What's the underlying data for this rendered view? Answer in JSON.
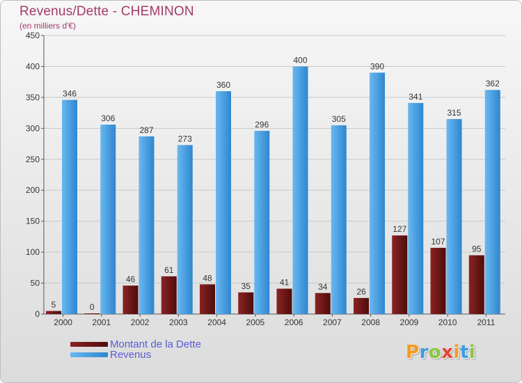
{
  "title": "Revenus/Dette - CHEMINON",
  "subtitle": "(en milliers d'€)",
  "brand": {
    "letters": [
      "P",
      "r",
      "o",
      "x",
      "i",
      "t",
      "i"
    ],
    "colors": [
      "#f39a1f",
      "#3a9de0",
      "#8cc63f",
      "#e8452c",
      "#f39a1f",
      "#3a9de0",
      "#8cc63f"
    ]
  },
  "colors": {
    "dette": "#6e1414",
    "revenus": "#4aa2e6",
    "label": "#333333",
    "axis": "#555555",
    "grid": "#c8c8c8"
  },
  "chart_data": {
    "type": "bar",
    "title": "Revenus/Dette - CHEMINON",
    "subtitle": "(en milliers d'€)",
    "categories": [
      "2000",
      "2001",
      "2002",
      "2003",
      "2004",
      "2005",
      "2006",
      "2007",
      "2008",
      "2009",
      "2010",
      "2011"
    ],
    "series": [
      {
        "name": "Montant de la Dette",
        "values": [
          5,
          0,
          46,
          61,
          48,
          35,
          41,
          34,
          26,
          127,
          107,
          95
        ]
      },
      {
        "name": "Revenus",
        "values": [
          346,
          306,
          287,
          273,
          360,
          296,
          400,
          305,
          390,
          341,
          315,
          362
        ]
      }
    ],
    "ylim": [
      0,
      450
    ],
    "yticks": [
      0,
      50,
      100,
      150,
      200,
      250,
      300,
      350,
      400,
      450
    ],
    "grid": true,
    "legend": "bottom-left"
  }
}
